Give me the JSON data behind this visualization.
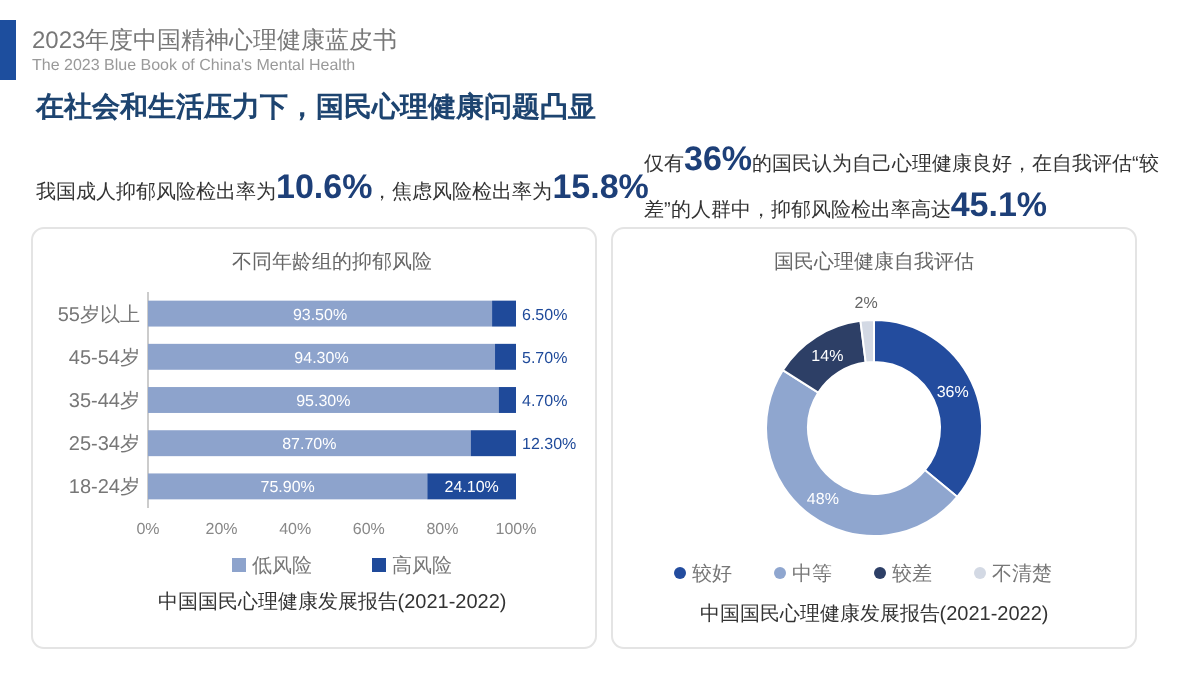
{
  "chart_data": [
    {
      "type": "other",
      "title": "2023年度中国精神心理健康蓝皮书",
      "subtitle": "The 2023 Blue Book of China's Mental Health",
      "annotations": [
        "在社会和生活压力下，国民心理健康问题凸显",
        "我国成人抑郁风险检出率为10.6%，焦虑风险检出率为15.8%",
        "仅有36%的国民认为自己心理健康良好，在自我评估“较差”的人群中，抑郁风险检出率高达45.1%"
      ]
    },
    {
      "type": "bar",
      "orientation": "horizontal",
      "stacked": true,
      "title": "不同年龄组的抑郁风险",
      "categories": [
        "55岁以上",
        "45-54岁",
        "35-44岁",
        "25-34岁",
        "18-24岁"
      ],
      "series": [
        {
          "name": "低风险",
          "color": "#8da3cc",
          "values": [
            93.5,
            94.3,
            95.3,
            87.7,
            75.9
          ],
          "value_labels": [
            "93.50%",
            "94.30%",
            "95.30%",
            "87.70%",
            "75.90%"
          ]
        },
        {
          "name": "高风险",
          "color": "#1f4a9a",
          "values": [
            6.5,
            5.7,
            4.7,
            12.3,
            24.1
          ],
          "value_labels": [
            "6.50%",
            "5.70%",
            "4.70%",
            "12.30%",
            "24.10%"
          ]
        }
      ],
      "xlim": [
        0,
        100
      ],
      "xticks": [
        {
          "value": 0,
          "label": "0%"
        },
        {
          "value": 20,
          "label": "20%"
        },
        {
          "value": 40,
          "label": "40%"
        },
        {
          "value": 60,
          "label": "60%"
        },
        {
          "value": 80,
          "label": "80%"
        },
        {
          "value": 100,
          "label": "100%"
        }
      ],
      "legend": "bottom",
      "annotations": [
        "中国国民心理健康发展报告(2021-2022)"
      ]
    },
    {
      "type": "donut",
      "title": "国民心理健康自我评估",
      "categories": [
        "较好",
        "中等",
        "较差",
        "不清楚"
      ],
      "values": [
        36,
        48,
        14,
        2
      ],
      "colors": [
        "#234c9e",
        "#8fa6cf",
        "#2d3f66",
        "#d3d9e4"
      ],
      "value_labels": [
        "36%",
        "48%",
        "14%",
        "2%"
      ],
      "legend": "bottom",
      "annotations": [
        "中国国民心理健康发展报告(2021-2022)"
      ]
    }
  ]
}
